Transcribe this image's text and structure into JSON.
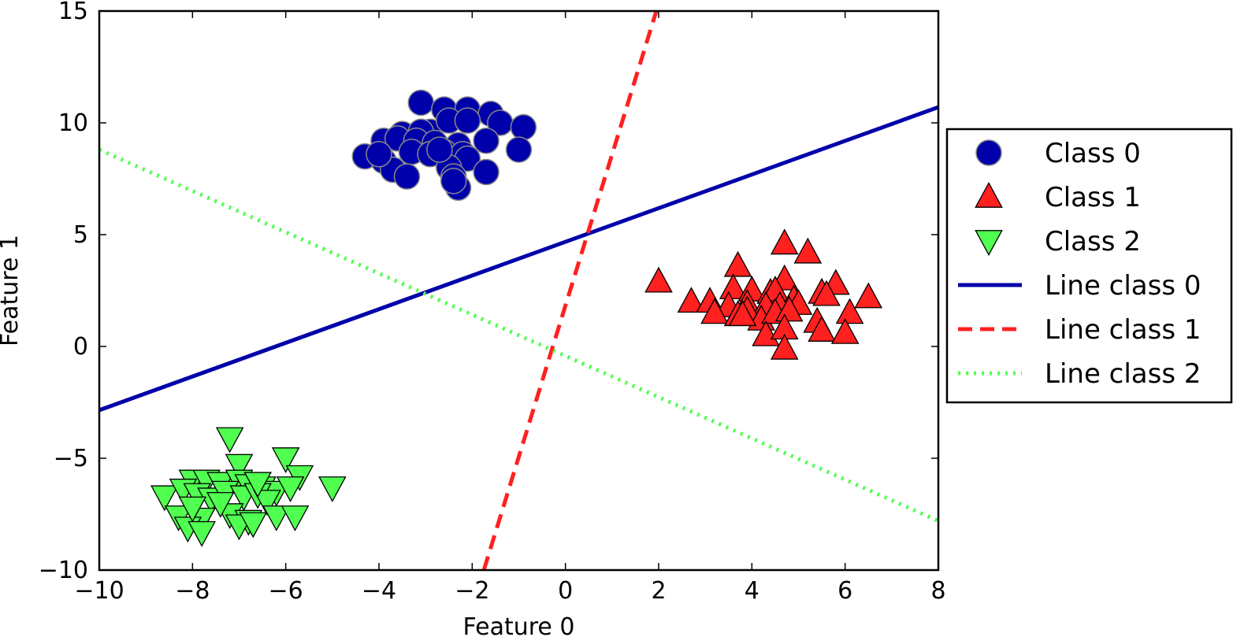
{
  "chart_data": {
    "type": "scatter",
    "xlabel": "Feature 0",
    "ylabel": "Feature 1",
    "xlim": [
      -10,
      8
    ],
    "ylim": [
      -10,
      15
    ],
    "xticks": [
      -10,
      -8,
      -6,
      -4,
      -2,
      0,
      2,
      4,
      6,
      8
    ],
    "yticks": [
      -10,
      -5,
      0,
      5,
      10,
      15
    ],
    "xtick_labels": [
      "−10",
      "−8",
      "−6",
      "−4",
      "−2",
      "0",
      "2",
      "4",
      "6",
      "8"
    ],
    "ytick_labels": [
      "−10",
      "−5",
      "0",
      "5",
      "10",
      "15"
    ],
    "grid": false,
    "legend_position": "outside-right",
    "series": [
      {
        "name": "Class 0",
        "marker": "circle",
        "color": "#0000aa",
        "edge_color": "#888888",
        "points": [
          [
            -3.1,
            10.9
          ],
          [
            -2.6,
            10.6
          ],
          [
            -2.1,
            10.6
          ],
          [
            -1.6,
            10.4
          ],
          [
            -1.4,
            10.0
          ],
          [
            -0.9,
            9.8
          ],
          [
            -3.5,
            9.5
          ],
          [
            -2.9,
            9.6
          ],
          [
            -2.5,
            10.1
          ],
          [
            -2.1,
            10.1
          ],
          [
            -3.1,
            9.6
          ],
          [
            -3.9,
            9.2
          ],
          [
            -3.6,
            9.3
          ],
          [
            -3.2,
            9.2
          ],
          [
            -2.8,
            9.1
          ],
          [
            -2.3,
            9.0
          ],
          [
            -1.7,
            9.2
          ],
          [
            -4.3,
            8.5
          ],
          [
            -3.9,
            8.3
          ],
          [
            -3.3,
            8.7
          ],
          [
            -2.9,
            8.6
          ],
          [
            -2.6,
            8.7
          ],
          [
            -2.2,
            8.6
          ],
          [
            -2.1,
            8.4
          ],
          [
            -1.0,
            8.8
          ],
          [
            -3.7,
            7.9
          ],
          [
            -3.4,
            7.6
          ],
          [
            -2.5,
            8.0
          ],
          [
            -2.4,
            7.6
          ],
          [
            -1.7,
            7.8
          ],
          [
            -2.3,
            7.1
          ],
          [
            -2.7,
            8.8
          ],
          [
            -2.4,
            7.4
          ],
          [
            -4.0,
            8.6
          ]
        ]
      },
      {
        "name": "Class 1",
        "marker": "triangle-up",
        "color": "#ff2020",
        "edge_color": "#000000",
        "points": [
          [
            2.0,
            2.9
          ],
          [
            4.7,
            4.6
          ],
          [
            5.2,
            4.2
          ],
          [
            3.7,
            3.6
          ],
          [
            4.7,
            3.0
          ],
          [
            5.8,
            2.8
          ],
          [
            3.6,
            2.6
          ],
          [
            4.0,
            2.5
          ],
          [
            4.4,
            2.4
          ],
          [
            4.5,
            2.5
          ],
          [
            4.9,
            2.1
          ],
          [
            5.5,
            2.4
          ],
          [
            6.5,
            2.2
          ],
          [
            2.7,
            2.0
          ],
          [
            3.1,
            2.0
          ],
          [
            3.5,
            1.8
          ],
          [
            3.9,
            1.9
          ],
          [
            4.3,
            1.8
          ],
          [
            4.6,
            1.8
          ],
          [
            5.0,
            1.9
          ],
          [
            5.6,
            2.3
          ],
          [
            3.2,
            1.5
          ],
          [
            3.7,
            1.4
          ],
          [
            3.9,
            1.6
          ],
          [
            4.2,
            1.2
          ],
          [
            4.5,
            1.5
          ],
          [
            4.8,
            1.6
          ],
          [
            5.4,
            1.1
          ],
          [
            6.1,
            1.5
          ],
          [
            3.8,
            1.4
          ],
          [
            4.3,
            0.5
          ],
          [
            4.7,
            0.8
          ],
          [
            5.5,
            0.7
          ],
          [
            6.0,
            0.6
          ],
          [
            4.7,
            -0.1
          ]
        ]
      },
      {
        "name": "Class 2",
        "marker": "triangle-down",
        "color": "#50ff50",
        "edge_color": "#000000",
        "points": [
          [
            -7.2,
            -4.1
          ],
          [
            -6.0,
            -5.0
          ],
          [
            -7.0,
            -5.3
          ],
          [
            -5.7,
            -5.8
          ],
          [
            -5.0,
            -6.3
          ],
          [
            -8.0,
            -6.0
          ],
          [
            -7.7,
            -6.0
          ],
          [
            -7.4,
            -6.1
          ],
          [
            -7.0,
            -6.0
          ],
          [
            -6.8,
            -6.2
          ],
          [
            -6.5,
            -6.3
          ],
          [
            -6.2,
            -6.5
          ],
          [
            -5.9,
            -6.3
          ],
          [
            -8.6,
            -6.7
          ],
          [
            -8.2,
            -6.4
          ],
          [
            -7.9,
            -6.6
          ],
          [
            -7.6,
            -6.8
          ],
          [
            -7.3,
            -6.5
          ],
          [
            -6.9,
            -6.7
          ],
          [
            -6.6,
            -6.6
          ],
          [
            -6.4,
            -6.9
          ],
          [
            -8.3,
            -7.6
          ],
          [
            -7.8,
            -7.7
          ],
          [
            -7.2,
            -7.5
          ],
          [
            -6.8,
            -7.8
          ],
          [
            -6.2,
            -7.6
          ],
          [
            -5.8,
            -7.6
          ],
          [
            -8.1,
            -8.1
          ],
          [
            -7.8,
            -8.3
          ],
          [
            -7.0,
            -8.0
          ],
          [
            -6.7,
            -7.9
          ],
          [
            -8.0,
            -7.2
          ],
          [
            -6.6,
            -6.1
          ],
          [
            -7.4,
            -7.0
          ]
        ]
      },
      {
        "name": "Line class 0",
        "type": "line",
        "style": "solid",
        "color": "#0000aa",
        "x": [
          -10,
          8
        ],
        "y": [
          -2.85,
          10.7
        ]
      },
      {
        "name": "Line class 1",
        "type": "line",
        "style": "dashed",
        "color": "#ff2020",
        "x": [
          -1.75,
          1.95
        ],
        "y": [
          -10,
          15
        ]
      },
      {
        "name": "Line class 2",
        "type": "line",
        "style": "dotted",
        "color": "#50ff50",
        "x": [
          -10,
          8
        ],
        "y": [
          8.8,
          -7.8
        ]
      }
    ],
    "legend": [
      {
        "label": "Class 0",
        "kind": "circle",
        "color": "#0000aa"
      },
      {
        "label": "Class 1",
        "kind": "triangle-up",
        "color": "#ff2020"
      },
      {
        "label": "Class 2",
        "kind": "triangle-down",
        "color": "#50ff50"
      },
      {
        "label": "Line class 0",
        "kind": "solid",
        "color": "#0000aa"
      },
      {
        "label": "Line class 1",
        "kind": "dashed",
        "color": "#ff2020"
      },
      {
        "label": "Line class 2",
        "kind": "dotted",
        "color": "#50ff50"
      }
    ]
  }
}
